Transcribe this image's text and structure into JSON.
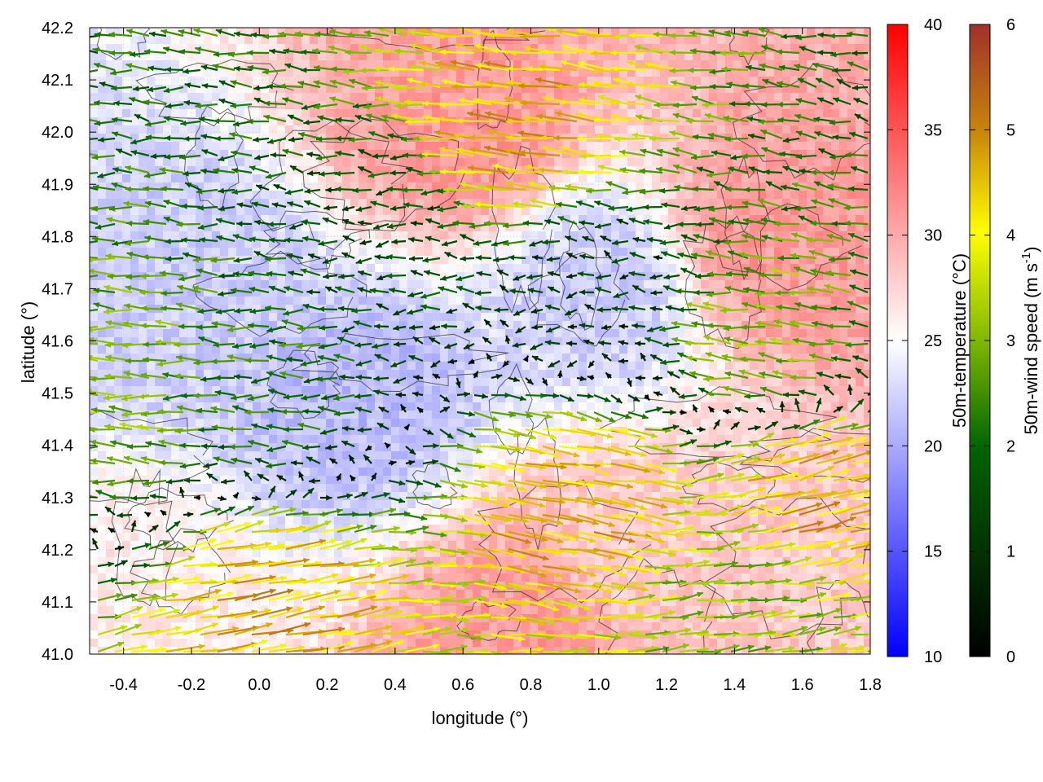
{
  "chart_data": {
    "type": "heatmap",
    "title": "",
    "xlabel": "longitude (°)",
    "ylabel": "latitude (°)",
    "xlim": [
      -0.5,
      1.8
    ],
    "ylim": [
      41.0,
      42.2
    ],
    "x_ticks": [
      -0.4,
      -0.2,
      0.0,
      0.2,
      0.4,
      0.6,
      0.8,
      1.0,
      1.2,
      1.4,
      1.6,
      1.8
    ],
    "x_tick_labels": [
      "-0.4",
      "-0.2",
      "0.0",
      "0.2",
      "0.4",
      "0.6",
      "0.8",
      "1.0",
      "1.2",
      "1.4",
      "1.6",
      "1.8"
    ],
    "y_ticks": [
      41.0,
      41.1,
      41.2,
      41.3,
      41.4,
      41.5,
      41.6,
      41.7,
      41.8,
      41.9,
      42.0,
      42.1,
      42.2
    ],
    "y_tick_labels": [
      "41.0",
      "41.1",
      "41.2",
      "41.3",
      "41.4",
      "41.5",
      "41.6",
      "41.7",
      "41.8",
      "41.9",
      "42.0",
      "42.1",
      "42.2"
    ],
    "grid": true,
    "temperature_colorbar": {
      "label": "50m-temperature (°C)",
      "range": [
        10,
        40
      ],
      "ticks": [
        10,
        15,
        20,
        25,
        30,
        35,
        40
      ],
      "tick_labels": [
        "10",
        "15",
        "20",
        "25",
        "30",
        "35",
        "40"
      ],
      "colors": [
        "#0000ff",
        "#ffffff",
        "#ff0000"
      ]
    },
    "wind_colorbar": {
      "label": "50m-wind speed (m s",
      "label_sup": "-1",
      "label_end": ")",
      "range": [
        0,
        6
      ],
      "ticks": [
        0,
        1,
        2,
        3,
        4,
        5,
        6
      ],
      "tick_labels": [
        "0",
        "1",
        "2",
        "3",
        "4",
        "5",
        "6"
      ],
      "colors": [
        "#000000",
        "#006400",
        "#7fb800",
        "#ffff00",
        "#c8860b",
        "#a0302a"
      ]
    },
    "temperature_regions": [
      {
        "lon": -0.2,
        "lat": 41.7,
        "t": 22
      },
      {
        "lon": 0.3,
        "lat": 41.5,
        "t": 21
      },
      {
        "lon": 0.6,
        "lat": 42.0,
        "t": 31
      },
      {
        "lon": 1.5,
        "lat": 41.8,
        "t": 31
      },
      {
        "lon": 1.1,
        "lat": 41.2,
        "t": 28
      },
      {
        "lon": 0.8,
        "lat": 41.05,
        "t": 31
      },
      {
        "lon": -0.4,
        "lat": 41.1,
        "t": 26
      },
      {
        "lon": 1.0,
        "lat": 41.7,
        "t": 22
      }
    ],
    "wind_field_summary": [
      {
        "lon": -0.4,
        "lat": 41.5,
        "u": -3.0,
        "v": 0.1
      },
      {
        "lon": 0.0,
        "lat": 41.5,
        "u": -2.2,
        "v": 0.1
      },
      {
        "lon": 0.4,
        "lat": 41.8,
        "u": -1.5,
        "v": 0.0
      },
      {
        "lon": 1.0,
        "lat": 41.7,
        "u": -1.0,
        "v": 0.1
      },
      {
        "lon": 1.5,
        "lat": 41.6,
        "u": -3.0,
        "v": 0.3
      },
      {
        "lon": 0.8,
        "lat": 42.0,
        "u": -4.5,
        "v": 0.5
      },
      {
        "lon": 0.0,
        "lat": 41.1,
        "u": 4.5,
        "v": 0.8
      },
      {
        "lon": 1.4,
        "lat": 41.1,
        "u": 3.0,
        "v": 0.3
      },
      {
        "lon": 0.9,
        "lat": 41.3,
        "u": 4.5,
        "v": -0.8
      },
      {
        "lon": 1.6,
        "lat": 41.3,
        "u": 4.5,
        "v": 1.2
      }
    ]
  }
}
